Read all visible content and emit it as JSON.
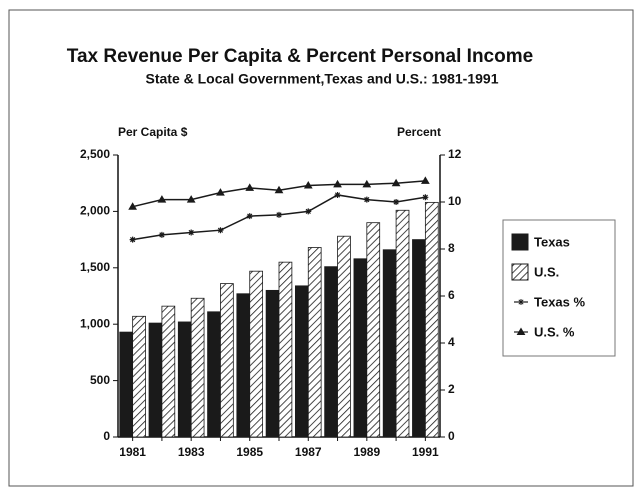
{
  "chart_data": {
    "type": "bar",
    "title": "Tax Revenue Per Capita & Percent Personal Income",
    "subtitle": "State & Local Government,Texas and U.S.:  1981-1991",
    "y_label": "Per Capita $",
    "y2_label": "Percent",
    "categories": [
      "1981",
      null,
      "1983",
      null,
      "1985",
      null,
      "1987",
      null,
      "1989",
      null,
      "1991"
    ],
    "ylim": [
      0,
      2500
    ],
    "yticks": [
      0,
      500,
      {
        "value": 1000,
        "label": "1,000"
      },
      {
        "value": 1500,
        "label": "1,500"
      },
      {
        "value": 2000,
        "label": "2,000"
      },
      {
        "value": 2500,
        "label": "2,500"
      }
    ],
    "y2lim": [
      0,
      12
    ],
    "y2ticks": [
      0,
      2,
      4,
      6,
      8,
      10,
      12
    ],
    "legend": "right",
    "series": [
      {
        "name": "Texas",
        "type": "bar",
        "color": "#1a1a1a",
        "fill": "solid",
        "values": [
          930,
          1010,
          1020,
          1110,
          1270,
          1300,
          1340,
          1510,
          1580,
          1660,
          1750
        ]
      },
      {
        "name": "U.S.",
        "type": "bar",
        "color": "#1a1a1a",
        "fill": "hatch",
        "values": [
          1070,
          1160,
          1230,
          1360,
          1470,
          1550,
          1680,
          1780,
          1900,
          2010,
          2080
        ]
      },
      {
        "name": "Texas %",
        "type": "line",
        "axis": "y2",
        "color": "#1a1a1a",
        "marker": "star",
        "values": [
          8.4,
          8.6,
          8.7,
          8.8,
          9.4,
          9.45,
          9.6,
          10.3,
          10.1,
          10.0,
          10.2
        ]
      },
      {
        "name": "U.S. %",
        "type": "line",
        "axis": "y2",
        "color": "#1a1a1a",
        "marker": "triangle",
        "values": [
          9.8,
          10.1,
          10.1,
          10.4,
          10.6,
          10.5,
          10.7,
          10.75,
          10.75,
          10.8,
          10.9
        ]
      }
    ]
  }
}
